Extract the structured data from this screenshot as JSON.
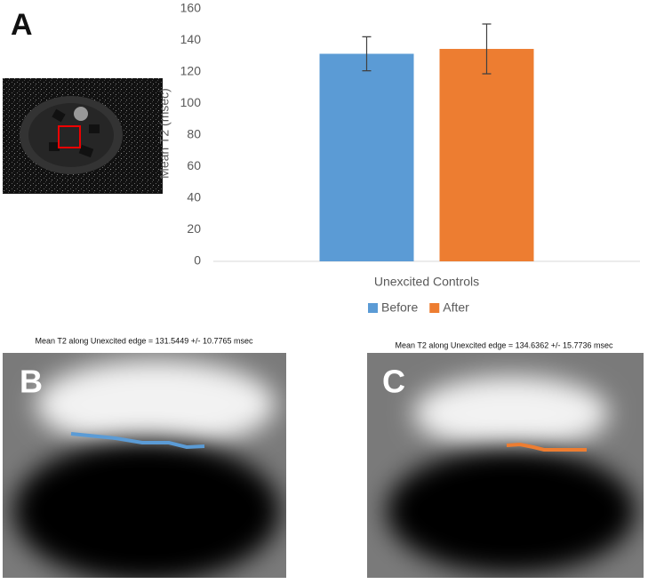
{
  "panels": {
    "a": "A",
    "b": "B",
    "c": "C"
  },
  "captions": [
    "Mean T2 along Unexcited edge = 131.5449 +/- 10.7765 msec",
    "Mean T2 along Unexcited edge = 134.6362 +/- 15.7736 msec"
  ],
  "chart_data": {
    "type": "bar",
    "y_label": "Mean T2 (msec)",
    "categories": [
      "Unexcited Controls"
    ],
    "series": [
      {
        "name": "Before",
        "color": "#5b9bd5",
        "values": [
          131.5449
        ],
        "errors": [
          10.7765
        ]
      },
      {
        "name": "After",
        "color": "#ed7d31",
        "values": [
          134.6362
        ],
        "errors": [
          15.7736
        ]
      }
    ],
    "ylim": [
      0,
      160
    ],
    "yticks": [
      0,
      20,
      40,
      60,
      80,
      100,
      120,
      140,
      160
    ],
    "legend": "bottom"
  }
}
